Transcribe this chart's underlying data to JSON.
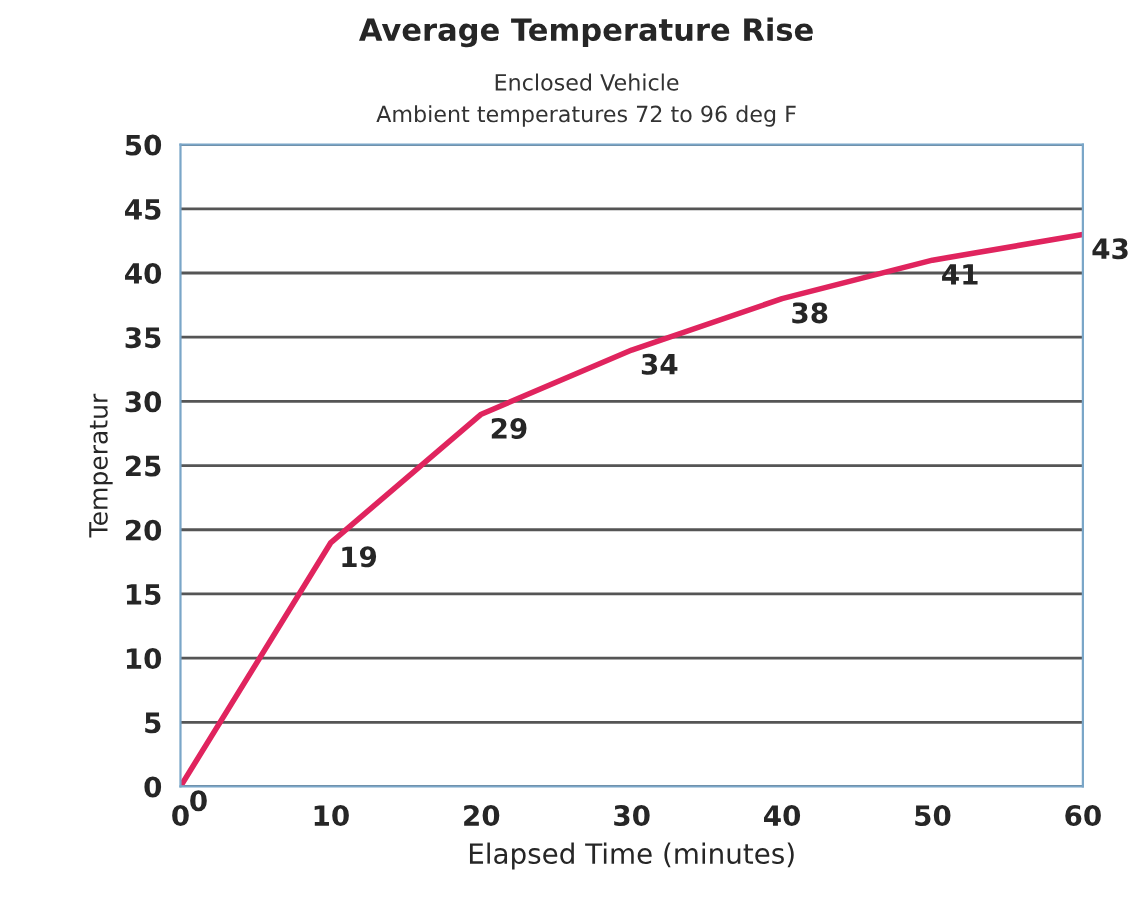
{
  "chart_data": {
    "type": "line",
    "title": "Average Temperature Rise",
    "subtitle": "Enclosed Vehicle\nAmbient temperatures 72 to 96 deg F",
    "xlabel": "Elapsed Time (minutes)",
    "ylabel": "Temperatur",
    "x": [
      0,
      10,
      20,
      30,
      40,
      50,
      60
    ],
    "series": [
      {
        "color": "#e0245e",
        "values": [
          0,
          19,
          29,
          34,
          38,
          41,
          43
        ]
      }
    ],
    "xlim": [
      0,
      60
    ],
    "xticks": [
      0,
      10,
      20,
      30,
      40,
      50,
      60
    ],
    "ylim": [
      0,
      50
    ],
    "yticks": [
      0,
      5,
      10,
      15,
      20,
      25,
      30,
      35,
      40,
      45,
      50
    ],
    "grid": "y",
    "data_labels": true,
    "marker": "none",
    "line_style": "solid"
  }
}
